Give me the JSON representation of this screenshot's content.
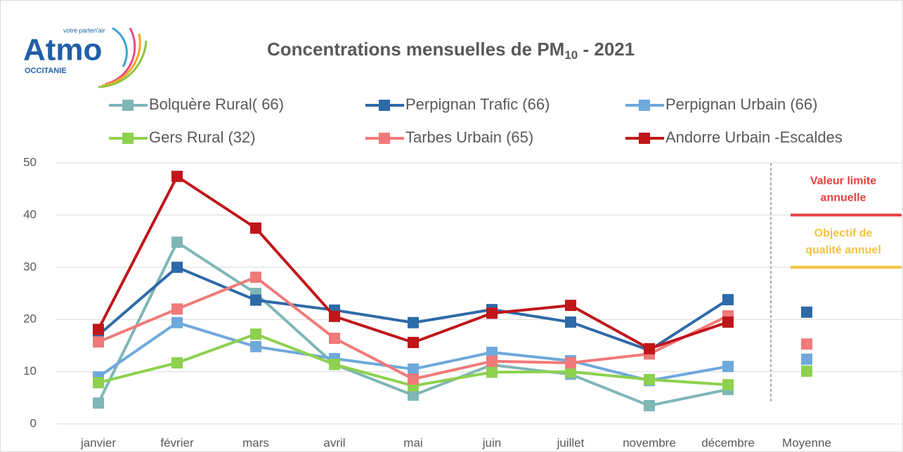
{
  "chart_data": {
    "type": "line",
    "title_parts": [
      "Concentrations mensuelles de PM",
      "10",
      " - 2021"
    ],
    "logo": {
      "name": "Atmo",
      "tagline": "votre parten'air",
      "region": "OCCITANIE"
    },
    "categories": [
      "janvier",
      "février",
      "mars",
      "avril",
      "mai",
      "juin",
      "juillet",
      "novembre",
      "décembre"
    ],
    "mean_label": "Moyenne",
    "ylim": [
      0,
      50
    ],
    "yticks": [
      0,
      10,
      20,
      30,
      40,
      50
    ],
    "grid": true,
    "series": [
      {
        "name": "Bolquère Rural( 66)",
        "color": "#7fb6b6",
        "values": [
          4.0,
          34.8,
          25.0,
          11.4,
          5.5,
          11.3,
          9.5,
          3.5,
          6.6
        ]
      },
      {
        "name": "Perpignan Trafic (66)",
        "color": "#2e6aa8",
        "values": [
          17.0,
          30.0,
          23.7,
          21.8,
          19.4,
          21.9,
          19.5,
          14.1,
          23.8
        ],
        "mean": 21.4
      },
      {
        "name": "Perpignan Urbain (66)",
        "color": "#6fa8dc",
        "values": [
          9.0,
          19.4,
          14.8,
          12.5,
          10.5,
          13.7,
          12.1,
          8.3,
          11.0
        ],
        "mean": 12.4
      },
      {
        "name": "Gers Rural (32)",
        "color": "#8dd14f",
        "values": [
          7.9,
          11.7,
          17.2,
          11.4,
          7.3,
          9.9,
          10.0,
          8.5,
          7.5
        ],
        "mean": 10.1
      },
      {
        "name": "Tarbes Urbain (65)",
        "color": "#f07a7a",
        "values": [
          15.7,
          22.0,
          28.1,
          16.4,
          8.6,
          12.0,
          11.7,
          13.4,
          20.7
        ],
        "mean": 15.3
      },
      {
        "name": "Andorre Urbain -Escaldes",
        "color": "#c0161a",
        "values": [
          18.1,
          47.4,
          37.5,
          20.6,
          15.6,
          21.2,
          22.7,
          14.4,
          19.5
        ]
      }
    ],
    "thresholds": [
      {
        "label_lines": [
          "Valeur limite",
          "annuelle"
        ],
        "value": 40,
        "color": "#e84040"
      },
      {
        "label_lines": [
          "Objectif de",
          "qualité annuel"
        ],
        "value": 30,
        "color": "#f5c242"
      }
    ]
  }
}
